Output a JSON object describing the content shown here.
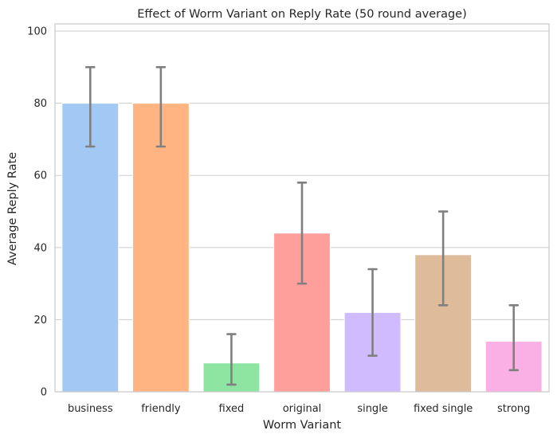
{
  "chart_data": {
    "type": "bar",
    "title": "Effect of Worm Variant on Reply Rate (50 round average)",
    "xlabel": "Worm Variant",
    "ylabel": "Average Reply Rate",
    "ylim": [
      0,
      102
    ],
    "yticks": [
      0,
      20,
      40,
      60,
      80,
      100
    ],
    "grid": true,
    "categories": [
      "business",
      "friendly",
      "fixed",
      "original",
      "single",
      "fixed single",
      "strong"
    ],
    "values": [
      80,
      80,
      8,
      44,
      22,
      38,
      14
    ],
    "error_low": [
      68,
      68,
      2,
      30,
      10,
      24,
      6
    ],
    "error_high": [
      90,
      90,
      16,
      58,
      34,
      50,
      24
    ],
    "colors": [
      "#a1c9f4",
      "#ffb482",
      "#8de5a1",
      "#ff9f9b",
      "#d0bbff",
      "#debb9b",
      "#fab0e4"
    ],
    "error_color": "#808080"
  }
}
